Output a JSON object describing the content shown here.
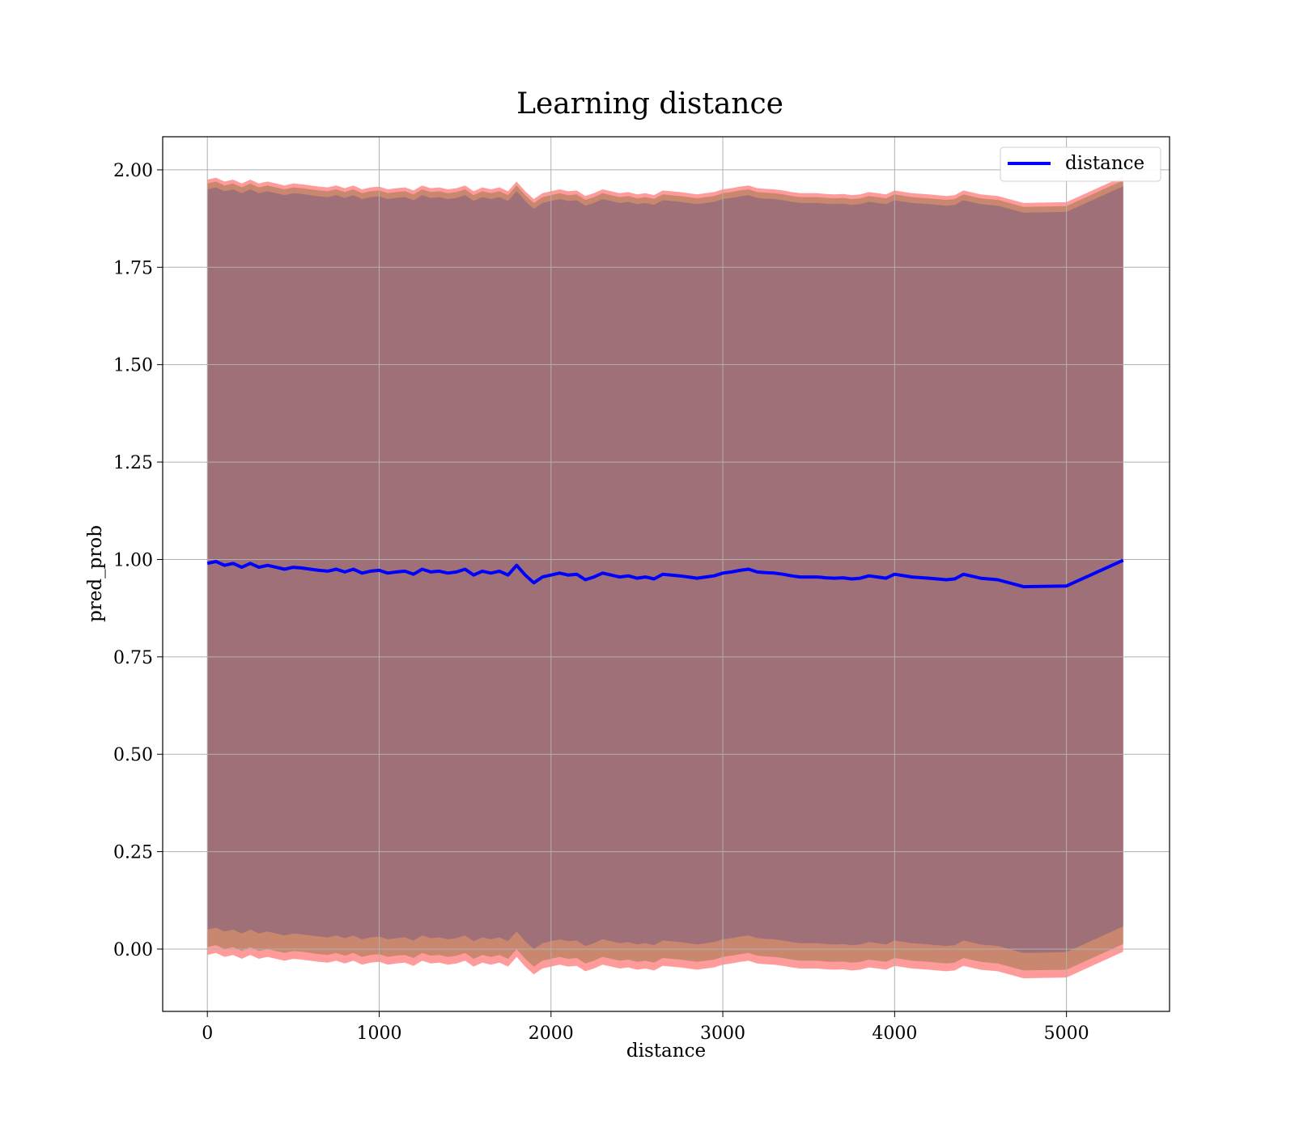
{
  "chart_data": {
    "type": "line",
    "title": "Learning distance",
    "xlabel": "distance",
    "ylabel": "pred_prob",
    "xlim": [
      -260,
      5600
    ],
    "ylim": [
      -0.16,
      2.085
    ],
    "xticks": [
      0,
      1000,
      2000,
      3000,
      4000,
      5000
    ],
    "xtick_labels": [
      "0",
      "1000",
      "2000",
      "3000",
      "4000",
      "5000"
    ],
    "yticks": [
      0.0,
      0.25,
      0.5,
      0.75,
      1.0,
      1.25,
      1.5,
      1.75,
      2.0
    ],
    "ytick_labels": [
      "0.00",
      "0.25",
      "0.50",
      "0.75",
      "1.00",
      "1.25",
      "1.50",
      "1.75",
      "2.00"
    ],
    "grid": true,
    "legend_position": "top-right",
    "series": [
      {
        "name": "distance",
        "color": "#0000ff",
        "x": [
          0,
          50,
          100,
          150,
          200,
          250,
          300,
          350,
          400,
          450,
          500,
          550,
          600,
          650,
          700,
          750,
          800,
          850,
          900,
          950,
          1000,
          1050,
          1100,
          1150,
          1200,
          1250,
          1300,
          1350,
          1400,
          1450,
          1500,
          1550,
          1600,
          1650,
          1700,
          1750,
          1800,
          1850,
          1900,
          1950,
          2000,
          2050,
          2100,
          2150,
          2200,
          2250,
          2300,
          2350,
          2400,
          2450,
          2500,
          2550,
          2600,
          2650,
          2700,
          2750,
          2800,
          2850,
          2900,
          2950,
          3000,
          3050,
          3100,
          3150,
          3200,
          3250,
          3300,
          3350,
          3400,
          3450,
          3500,
          3550,
          3600,
          3650,
          3700,
          3750,
          3800,
          3850,
          3900,
          3950,
          4000,
          4100,
          4200,
          4300,
          4350,
          4400,
          4500,
          4600,
          4750,
          5000,
          5330
        ],
        "values": [
          0.99,
          0.995,
          0.985,
          0.99,
          0.98,
          0.99,
          0.98,
          0.985,
          0.98,
          0.975,
          0.98,
          0.978,
          0.975,
          0.972,
          0.97,
          0.975,
          0.968,
          0.975,
          0.965,
          0.97,
          0.972,
          0.965,
          0.968,
          0.97,
          0.962,
          0.975,
          0.968,
          0.97,
          0.965,
          0.968,
          0.975,
          0.96,
          0.97,
          0.965,
          0.97,
          0.96,
          0.985,
          0.96,
          0.94,
          0.955,
          0.96,
          0.965,
          0.96,
          0.962,
          0.948,
          0.955,
          0.965,
          0.96,
          0.955,
          0.958,
          0.952,
          0.955,
          0.95,
          0.962,
          0.96,
          0.958,
          0.955,
          0.952,
          0.955,
          0.958,
          0.965,
          0.968,
          0.972,
          0.975,
          0.968,
          0.966,
          0.965,
          0.962,
          0.958,
          0.955,
          0.955,
          0.955,
          0.953,
          0.952,
          0.953,
          0.95,
          0.952,
          0.958,
          0.955,
          0.952,
          0.962,
          0.955,
          0.952,
          0.948,
          0.95,
          0.962,
          0.952,
          0.948,
          0.93,
          0.932,
          0.998
        ],
        "band_halfwidth_outer": 0.985,
        "band_halfwidth_inner": 0.96
      }
    ],
    "band_colors": {
      "outer": "#ff9b9b",
      "middle": "#c8876e",
      "inner": "#a07078"
    }
  }
}
